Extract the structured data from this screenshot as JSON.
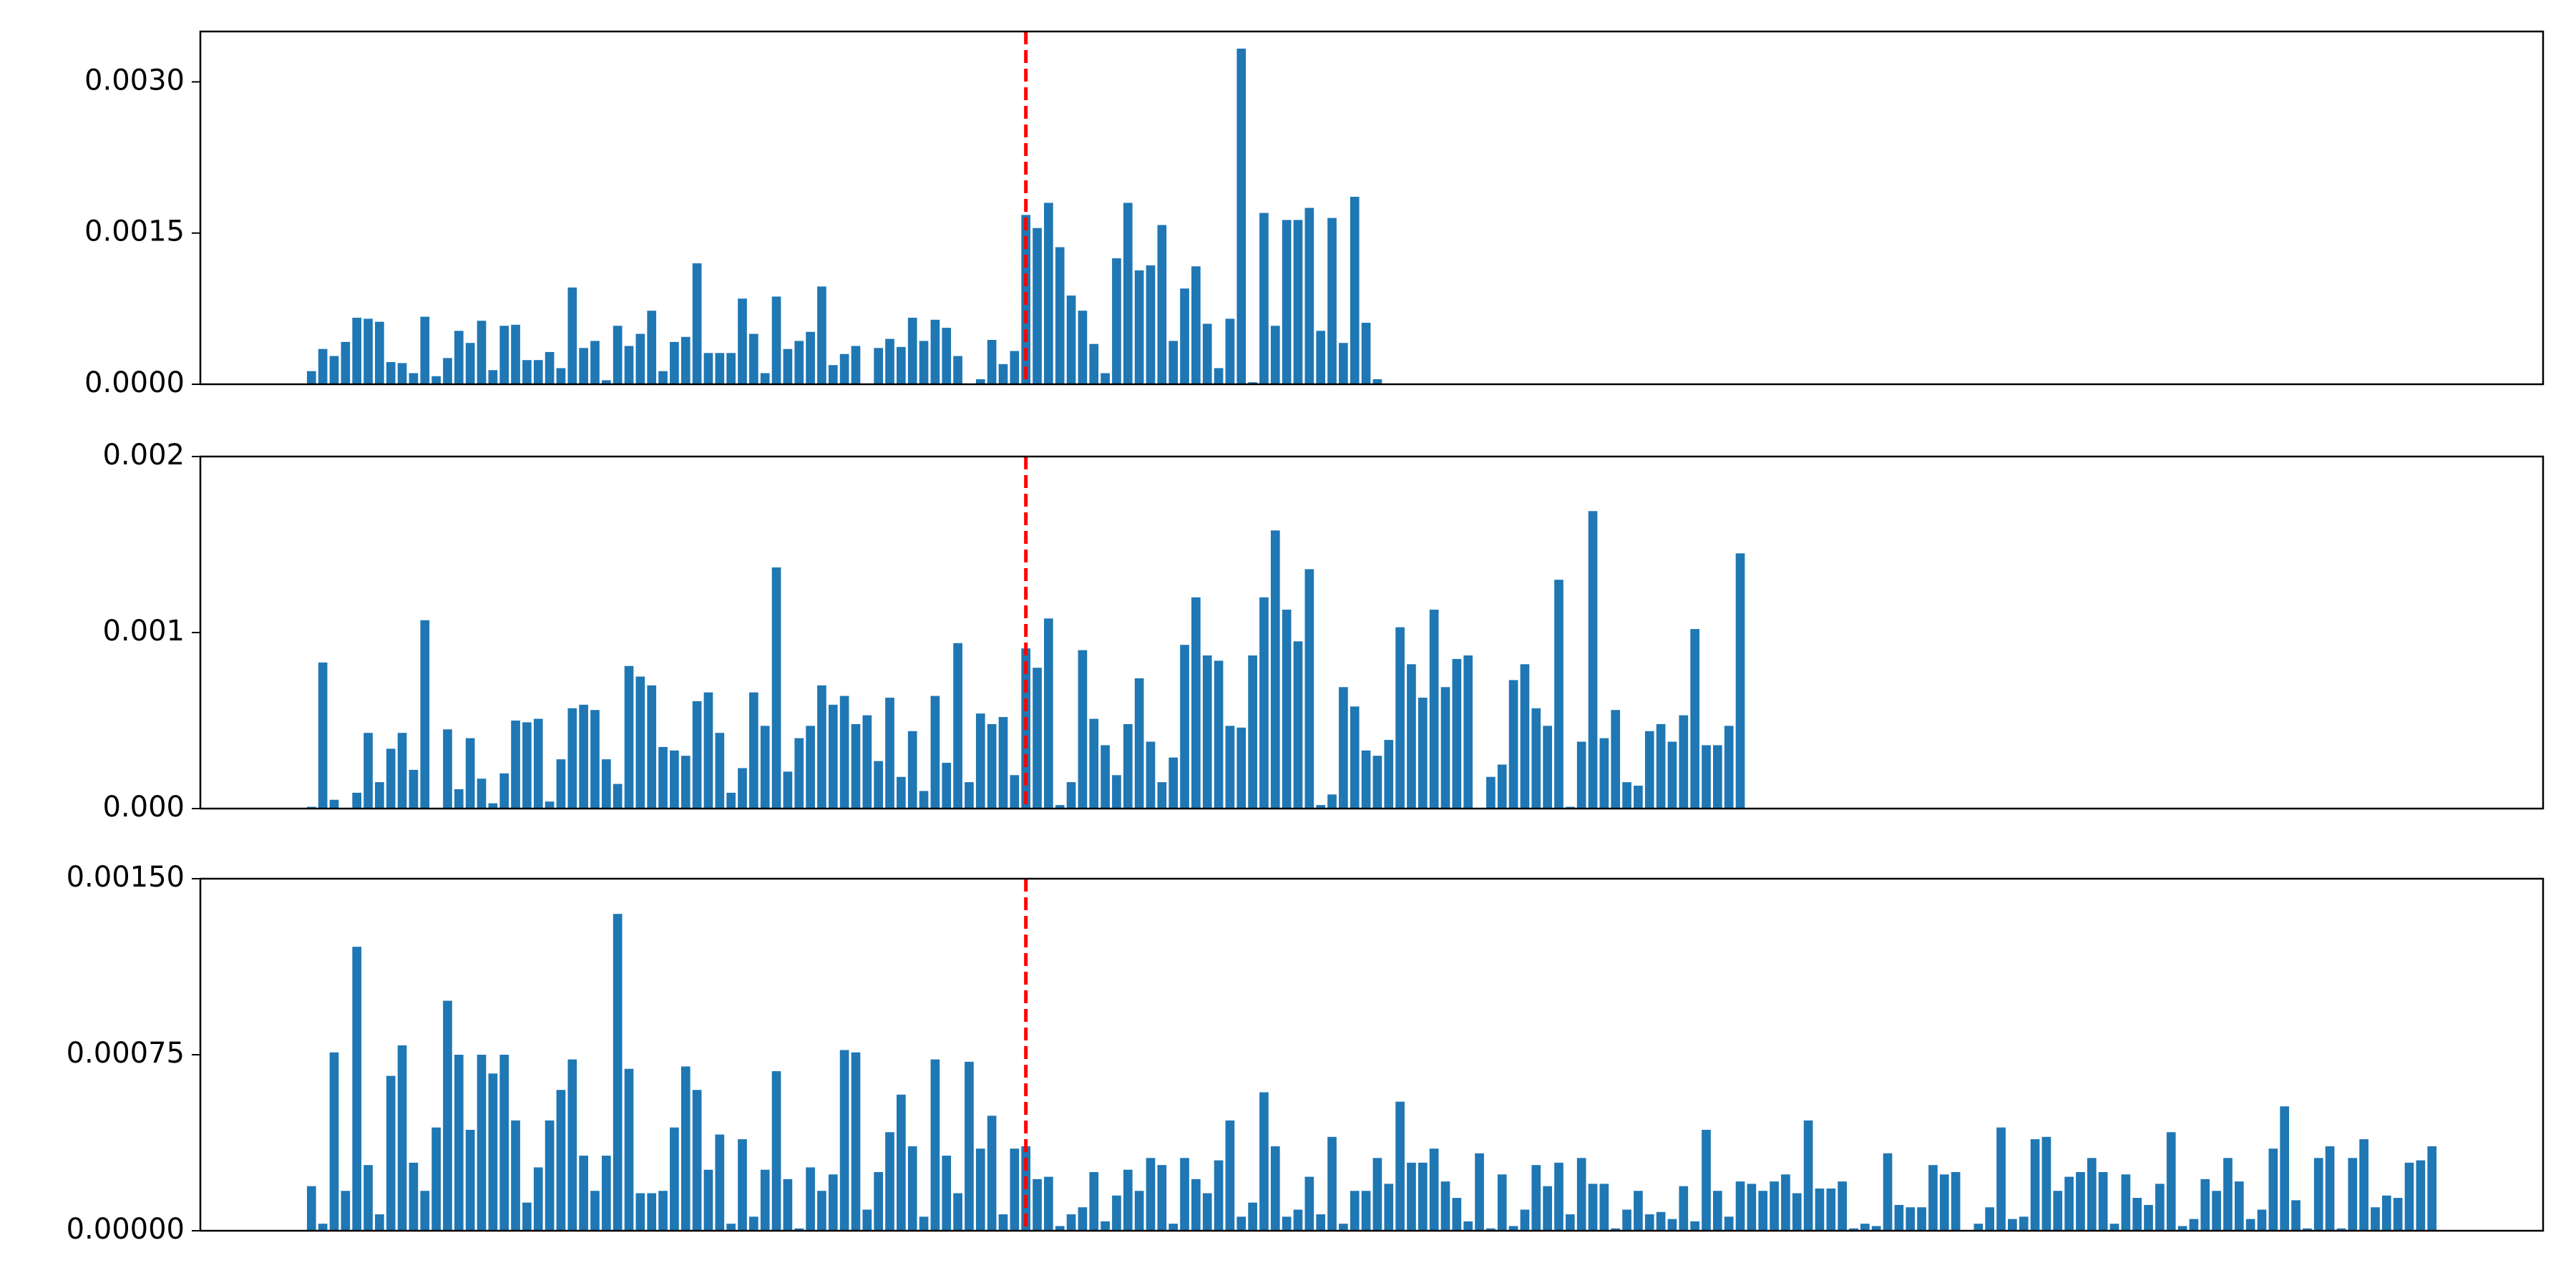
{
  "chart_data": [
    {
      "type": "bar",
      "color": "#1f77b4",
      "xlim": [
        -9.8,
        196.8
      ],
      "ylim": [
        0,
        0.0035
      ],
      "yticks": [
        {
          "value": 0,
          "label": "0.0000"
        },
        {
          "value": 0.0015,
          "label": "0.0015"
        },
        {
          "value": 0.003,
          "label": "0.0030"
        }
      ],
      "vline": {
        "x": 63,
        "color": "#ff0000"
      },
      "values": [
        0.00013,
        0.00035,
        0.00028,
        0.00042,
        0.00066,
        0.00065,
        0.00062,
        0.00022,
        0.00021,
        0.00011,
        0.00067,
        8e-05,
        0.00026,
        0.00053,
        0.00041,
        0.00063,
        0.00014,
        0.00058,
        0.00059,
        0.00024,
        0.00024,
        0.00032,
        0.00016,
        0.00096,
        0.00036,
        0.00043,
        4e-05,
        0.00058,
        0.00038,
        0.0005,
        0.00073,
        0.00013,
        0.00042,
        0.00047,
        0.0012,
        0.00031,
        0.00031,
        0.00031,
        0.00085,
        0.0005,
        0.00011,
        0.00087,
        0.00035,
        0.00043,
        0.00052,
        0.00097,
        0.00019,
        0.0003,
        0.00038,
        0,
        0.00036,
        0.00045,
        0.00037,
        0.00066,
        0.00043,
        0.00064,
        0.00056,
        0.00028,
        0,
        5e-05,
        0.00044,
        0.0002,
        0.00033,
        0.00168,
        0.00155,
        0.0018,
        0.00136,
        0.00088,
        0.00073,
        0.0004,
        0.00011,
        0.00125,
        0.0018,
        0.00113,
        0.00118,
        0.00158,
        0.00043,
        0.00095,
        0.00117,
        0.0006,
        0.00016,
        0.00065,
        0.00333,
        2e-05,
        0.0017,
        0.00058,
        0.00163,
        0.00163,
        0.00175,
        0.00053,
        0.00165,
        0.00041,
        0.00186,
        0.00061,
        5e-05
      ]
    },
    {
      "type": "bar",
      "color": "#1f77b4",
      "xlim": [
        -9.8,
        196.8
      ],
      "ylim": [
        0,
        0.002
      ],
      "yticks": [
        {
          "value": 0,
          "label": "0.000"
        },
        {
          "value": 0.001,
          "label": "0.001"
        },
        {
          "value": 0.002,
          "label": "0.002"
        }
      ],
      "vline": {
        "x": 63,
        "color": "#ff0000"
      },
      "values": [
        1e-05,
        0.00083,
        5e-05,
        0,
        9e-05,
        0.00043,
        0.00015,
        0.00034,
        0.00043,
        0.00022,
        0.00107,
        0,
        0.00045,
        0.00011,
        0.0004,
        0.00017,
        3e-05,
        0.0002,
        0.0005,
        0.00049,
        0.00051,
        4e-05,
        0.00028,
        0.00057,
        0.00059,
        0.00056,
        0.00028,
        0.00014,
        0.00081,
        0.00075,
        0.0007,
        0.00035,
        0.00033,
        0.0003,
        0.00061,
        0.00066,
        0.00043,
        9e-05,
        0.00023,
        0.00066,
        0.00047,
        0.00137,
        0.00021,
        0.0004,
        0.00047,
        0.0007,
        0.00059,
        0.00064,
        0.00048,
        0.00053,
        0.00027,
        0.00063,
        0.00018,
        0.00044,
        0.0001,
        0.00064,
        0.00026,
        0.00094,
        0.00015,
        0.00054,
        0.00048,
        0.00052,
        0.00019,
        0.00091,
        0.0008,
        0.00108,
        2e-05,
        0.00015,
        0.0009,
        0.00051,
        0.00036,
        0.00019,
        0.00048,
        0.00074,
        0.00038,
        0.00015,
        0.00029,
        0.00093,
        0.0012,
        0.00087,
        0.00084,
        0.00047,
        0.00046,
        0.00087,
        0.0012,
        0.00158,
        0.00113,
        0.00095,
        0.00136,
        2e-05,
        8e-05,
        0.00069,
        0.00058,
        0.00033,
        0.0003,
        0.00039,
        0.00103,
        0.00082,
        0.00063,
        0.00113,
        0.00069,
        0.00085,
        0.00087,
        0,
        0.00018,
        0.00025,
        0.00073,
        0.00082,
        0.00057,
        0.00047,
        0.0013,
        1e-05,
        0.00038,
        0.00169,
        0.0004,
        0.00056,
        0.00015,
        0.00013,
        0.00044,
        0.00048,
        0.00038,
        0.00053,
        0.00102,
        0.00036,
        0.00036,
        0.00047,
        0.00145
      ]
    },
    {
      "type": "bar",
      "color": "#1f77b4",
      "xlim": [
        -9.8,
        196.8
      ],
      "ylim": [
        0,
        0.0015
      ],
      "yticks": [
        {
          "value": 0,
          "label": "0.00000"
        },
        {
          "value": 0.00075,
          "label": "0.00075"
        },
        {
          "value": 0.0015,
          "label": "0.00150"
        }
      ],
      "vline": {
        "x": 63,
        "color": "#ff0000"
      },
      "values": [
        0.00019,
        3e-05,
        0.00076,
        0.00017,
        0.00121,
        0.00028,
        7e-05,
        0.00066,
        0.00079,
        0.00029,
        0.00017,
        0.00044,
        0.00098,
        0.00075,
        0.00043,
        0.00075,
        0.00067,
        0.00075,
        0.00047,
        0.00012,
        0.00027,
        0.00047,
        0.0006,
        0.00073,
        0.00032,
        0.00017,
        0.00032,
        0.00135,
        0.00069,
        0.00016,
        0.00016,
        0.00017,
        0.00044,
        0.0007,
        0.0006,
        0.00026,
        0.00041,
        3e-05,
        0.00039,
        6e-05,
        0.00026,
        0.00068,
        0.00022,
        1e-05,
        0.00027,
        0.00017,
        0.00024,
        0.00077,
        0.00076,
        9e-05,
        0.00025,
        0.00042,
        0.00058,
        0.00036,
        6e-05,
        0.00073,
        0.00032,
        0.00016,
        0.00072,
        0.00035,
        0.00049,
        7e-05,
        0.00035,
        0.00036,
        0.00022,
        0.00023,
        2e-05,
        7e-05,
        0.0001,
        0.00025,
        4e-05,
        0.00015,
        0.00026,
        0.00017,
        0.00031,
        0.00028,
        3e-05,
        0.00031,
        0.00022,
        0.00016,
        0.0003,
        0.00047,
        6e-05,
        0.00012,
        0.00059,
        0.00036,
        6e-05,
        9e-05,
        0.00023,
        7e-05,
        0.0004,
        3e-05,
        0.00017,
        0.00017,
        0.00031,
        0.0002,
        0.00055,
        0.00029,
        0.00029,
        0.00035,
        0.00021,
        0.00014,
        4e-05,
        0.00033,
        1e-05,
        0.00024,
        2e-05,
        9e-05,
        0.00028,
        0.00019,
        0.00029,
        7e-05,
        0.00031,
        0.0002,
        0.0002,
        1e-05,
        9e-05,
        0.00017,
        7e-05,
        8e-05,
        5e-05,
        0.00019,
        4e-05,
        0.00043,
        0.00017,
        6e-05,
        0.00021,
        0.0002,
        0.00017,
        0.00021,
        0.00024,
        0.00016,
        0.00047,
        0.00018,
        0.00018,
        0.00021,
        1e-05,
        3e-05,
        2e-05,
        0.00033,
        0.00011,
        0.0001,
        0.0001,
        0.00028,
        0.00024,
        0.00025,
        0,
        3e-05,
        0.0001,
        0.00044,
        5e-05,
        6e-05,
        0.00039,
        0.0004,
        0.00017,
        0.00023,
        0.00025,
        0.00031,
        0.00025,
        3e-05,
        0.00024,
        0.00014,
        0.00011,
        0.0002,
        0.00042,
        2e-05,
        5e-05,
        0.00022,
        0.00017,
        0.00031,
        0.00021,
        5e-05,
        9e-05,
        0.00035,
        0.00053,
        0.00013,
        1e-05,
        0.00031,
        0.00036,
        1e-05,
        0.00031,
        0.00039,
        0.0001,
        0.00015,
        0.00014,
        0.00029,
        0.0003,
        0.00036
      ]
    }
  ]
}
